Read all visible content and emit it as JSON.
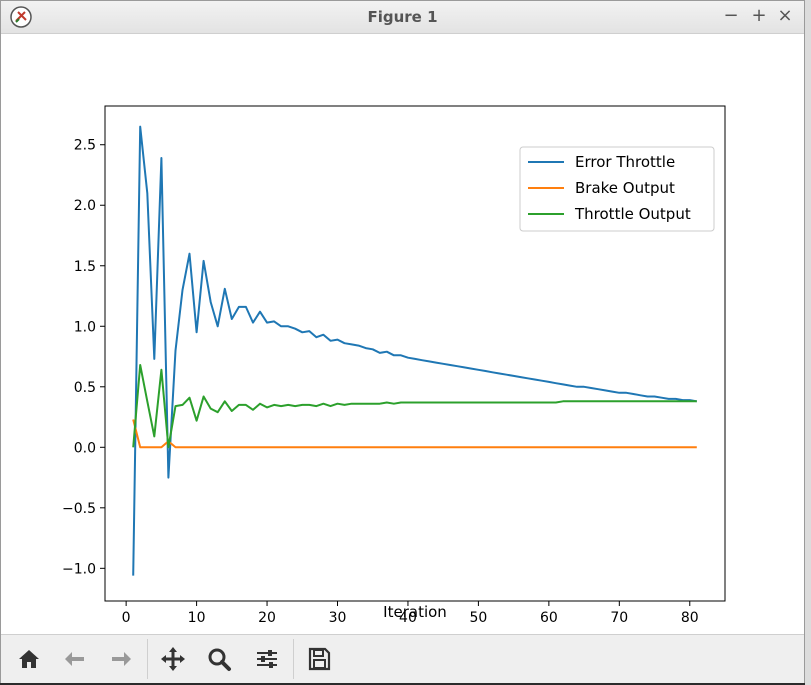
{
  "window": {
    "title": "Figure 1"
  },
  "toolbar": {
    "icons": [
      "home-icon",
      "back-arrow-icon",
      "forward-arrow-icon",
      "pan-icon",
      "zoom-icon",
      "configure-subplots-icon",
      "save-icon"
    ]
  },
  "colors": {
    "error": "#1f77b4",
    "brake": "#ff7f0e",
    "throttle": "#2ca02c"
  },
  "chart_data": {
    "type": "line",
    "title": "",
    "xlabel": "Iteration",
    "ylabel": "",
    "xlim": [
      -3,
      85
    ],
    "ylim": [
      -1.27,
      2.82
    ],
    "xticks": [
      0,
      10,
      20,
      30,
      40,
      50,
      60,
      70,
      80
    ],
    "yticks": [
      -1.0,
      -0.5,
      0.0,
      0.5,
      1.0,
      1.5,
      2.0,
      2.5
    ],
    "ytick_labels": [
      "−1.0",
      "−0.5",
      "0.0",
      "0.5",
      "1.0",
      "1.5",
      "2.0",
      "2.5"
    ],
    "grid": false,
    "legend_position": "top-right",
    "x": [
      1,
      2,
      3,
      4,
      5,
      6,
      7,
      8,
      9,
      10,
      11,
      12,
      13,
      14,
      15,
      16,
      17,
      18,
      19,
      20,
      21,
      22,
      23,
      24,
      25,
      26,
      27,
      28,
      29,
      30,
      31,
      32,
      33,
      34,
      35,
      36,
      37,
      38,
      39,
      40,
      41,
      42,
      43,
      44,
      45,
      46,
      47,
      48,
      49,
      50,
      51,
      52,
      53,
      54,
      55,
      56,
      57,
      58,
      59,
      60,
      61,
      62,
      63,
      64,
      65,
      66,
      67,
      68,
      69,
      70,
      71,
      72,
      73,
      74,
      75,
      76,
      77,
      78,
      79,
      80,
      81
    ],
    "series": [
      {
        "name": "Error Throttle",
        "color": "#1f77b4",
        "values": [
          -1.06,
          2.65,
          2.1,
          0.73,
          2.39,
          -0.25,
          0.8,
          1.3,
          1.6,
          0.95,
          1.54,
          1.2,
          1.0,
          1.31,
          1.06,
          1.16,
          1.16,
          1.03,
          1.12,
          1.03,
          1.04,
          1.0,
          1.0,
          0.98,
          0.95,
          0.96,
          0.91,
          0.93,
          0.88,
          0.89,
          0.86,
          0.85,
          0.84,
          0.82,
          0.81,
          0.78,
          0.79,
          0.76,
          0.76,
          0.74,
          0.73,
          0.72,
          0.71,
          0.7,
          0.69,
          0.68,
          0.67,
          0.66,
          0.65,
          0.64,
          0.63,
          0.62,
          0.61,
          0.6,
          0.59,
          0.58,
          0.57,
          0.56,
          0.55,
          0.54,
          0.53,
          0.52,
          0.51,
          0.5,
          0.5,
          0.49,
          0.48,
          0.47,
          0.46,
          0.45,
          0.45,
          0.44,
          0.43,
          0.42,
          0.42,
          0.41,
          0.4,
          0.4,
          0.39,
          0.39,
          0.38
        ]
      },
      {
        "name": "Brake Output",
        "color": "#ff7f0e",
        "values": [
          0.23,
          0.0,
          0.0,
          0.0,
          0.0,
          0.05,
          0.0,
          0.0,
          0.0,
          0.0,
          0.0,
          0.0,
          0.0,
          0.0,
          0.0,
          0.0,
          0.0,
          0.0,
          0.0,
          0.0,
          0.0,
          0.0,
          0.0,
          0.0,
          0.0,
          0.0,
          0.0,
          0.0,
          0.0,
          0.0,
          0.0,
          0.0,
          0.0,
          0.0,
          0.0,
          0.0,
          0.0,
          0.0,
          0.0,
          0.0,
          0.0,
          0.0,
          0.0,
          0.0,
          0.0,
          0.0,
          0.0,
          0.0,
          0.0,
          0.0,
          0.0,
          0.0,
          0.0,
          0.0,
          0.0,
          0.0,
          0.0,
          0.0,
          0.0,
          0.0,
          0.0,
          0.0,
          0.0,
          0.0,
          0.0,
          0.0,
          0.0,
          0.0,
          0.0,
          0.0,
          0.0,
          0.0,
          0.0,
          0.0,
          0.0,
          0.0,
          0.0,
          0.0,
          0.0,
          0.0,
          0.0
        ]
      },
      {
        "name": "Throttle Output",
        "color": "#2ca02c",
        "values": [
          0.0,
          0.68,
          0.38,
          0.09,
          0.64,
          0.0,
          0.34,
          0.35,
          0.41,
          0.22,
          0.42,
          0.32,
          0.29,
          0.38,
          0.3,
          0.35,
          0.35,
          0.31,
          0.36,
          0.33,
          0.35,
          0.34,
          0.35,
          0.34,
          0.35,
          0.35,
          0.34,
          0.36,
          0.34,
          0.36,
          0.35,
          0.36,
          0.36,
          0.36,
          0.36,
          0.36,
          0.37,
          0.36,
          0.37,
          0.37,
          0.37,
          0.37,
          0.37,
          0.37,
          0.37,
          0.37,
          0.37,
          0.37,
          0.37,
          0.37,
          0.37,
          0.37,
          0.37,
          0.37,
          0.37,
          0.37,
          0.37,
          0.37,
          0.37,
          0.37,
          0.37,
          0.38,
          0.38,
          0.38,
          0.38,
          0.38,
          0.38,
          0.38,
          0.38,
          0.38,
          0.38,
          0.38,
          0.38,
          0.38,
          0.38,
          0.38,
          0.38,
          0.38,
          0.38,
          0.38,
          0.38
        ]
      }
    ]
  }
}
